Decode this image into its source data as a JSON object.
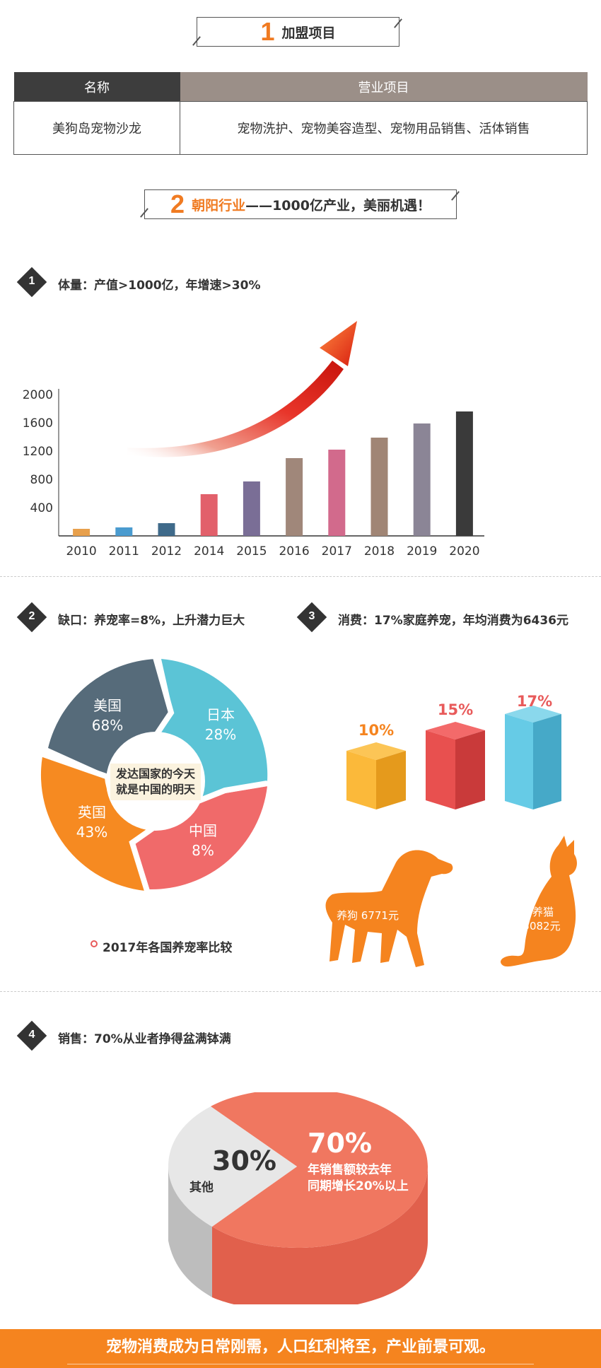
{
  "section1": {
    "num": "1",
    "title": "加盟项目"
  },
  "table": {
    "headers": [
      "名称",
      "营业项目"
    ],
    "row": [
      "美狗岛宠物沙龙",
      "宠物洗护、宠物美容造型、宠物用品销售、活体销售"
    ],
    "colors": {
      "header_left": "#3d3d3d",
      "header_right": "#9b8f88"
    }
  },
  "section2": {
    "num": "2",
    "highlight": "朝阳行业",
    "rest": "——1000亿产业，美丽机遇！"
  },
  "point1": {
    "num": "1",
    "title": "体量：产值>1000亿，年增速>30%"
  },
  "point2": {
    "num": "2",
    "title": "缺口：养宠率=8%，上升潜力巨大"
  },
  "point3": {
    "num": "3",
    "title": "消费：17%家庭养宠，年均消费为6436元"
  },
  "point4": {
    "num": "4",
    "title": "销售：70%从业者挣得盆满钵满"
  },
  "chart_data": [
    {
      "type": "bar",
      "categories": [
        "2010",
        "2011",
        "2012",
        "2014",
        "2015",
        "2016",
        "2017",
        "2018",
        "2019",
        "2020"
      ],
      "values": [
        100,
        120,
        180,
        590,
        770,
        1100,
        1220,
        1390,
        1590,
        1760
      ],
      "ylim": [
        0,
        2000
      ],
      "yticks": [
        400,
        800,
        1200,
        1600,
        2000
      ],
      "colors": [
        "#e8a04c",
        "#4a9bcf",
        "#3f6a8a",
        "#e2606b",
        "#7a6e96",
        "#a0877a",
        "#d26a8c",
        "#a08575",
        "#8b8596",
        "#3a3a3a"
      ]
    },
    {
      "type": "pie",
      "title": "2017年各国养宠率比较",
      "center_text": [
        "发达国家的今天",
        "就是中国的明天"
      ],
      "slices": [
        {
          "label": "美国",
          "value": "68%",
          "color": "#566b7a"
        },
        {
          "label": "日本",
          "value": "28%",
          "color": "#5bc4d6"
        },
        {
          "label": "中国",
          "value": "8%",
          "color": "#f06a6a"
        },
        {
          "label": "英国",
          "value": "43%",
          "color": "#f68a21"
        }
      ]
    },
    {
      "type": "bar",
      "values": [
        "10%",
        "15%",
        "17%"
      ],
      "colors": [
        "#f6a623",
        "#e8504f",
        "#56c5e0"
      ],
      "label_colors": [
        "#f5841f",
        "#e85a5a",
        "#e85a5a"
      ]
    },
    {
      "type": "pie",
      "slices": [
        {
          "value": "30%",
          "label": "其他",
          "color": "#e5e5e5"
        },
        {
          "value": "70%",
          "label": [
            "年销售额较去年",
            "同期增长20%以上"
          ],
          "color": "#f07760"
        }
      ]
    }
  ],
  "pets": {
    "dog": "养狗 6771元",
    "cat": [
      "养猫",
      "5082元"
    ],
    "color": "#f5841f"
  },
  "footer": "宠物消费成为日常刚需，人口红利将至，产业前景可观。"
}
